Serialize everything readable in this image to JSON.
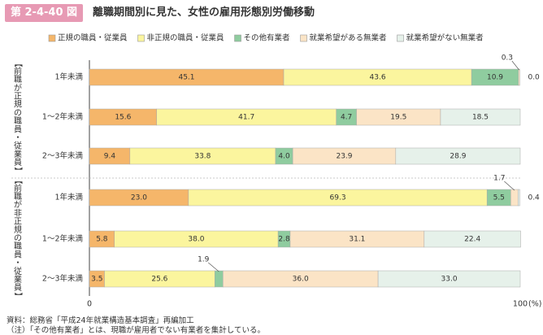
{
  "header": {
    "figure_no": "第 2-4-40 図",
    "title": "離職期間別に見た、女性の雇用形態別労働移動"
  },
  "chart_data": {
    "type": "bar",
    "orientation": "horizontal",
    "stacked": true,
    "title": "離職期間別に見た、女性の雇用形態別労働移動",
    "xlabel": "(%)",
    "xlim": [
      0,
      100
    ],
    "x_ticks": [
      "0",
      "100"
    ],
    "legend_position": "top",
    "groups": [
      {
        "label": "【前職が正規の職員・従業員】",
        "categories": [
          "1年未満",
          "1～2年未満",
          "2～3年未満"
        ]
      },
      {
        "label": "【前職が非正規の職員・従業員】",
        "categories": [
          "1年未満",
          "1～2年未満",
          "2～3年未満"
        ]
      }
    ],
    "categories": [
      "1年未満",
      "1～2年未満",
      "2～3年未満",
      "1年未満",
      "1～2年未満",
      "2～3年未満"
    ],
    "series": [
      {
        "name": "正規の職員・従業員",
        "color": "#f5b66a",
        "values": [
          45.1,
          15.6,
          9.4,
          23.0,
          5.8,
          3.5
        ]
      },
      {
        "name": "非正規の職員・従業員",
        "color": "#fbf59e",
        "values": [
          43.6,
          41.7,
          33.8,
          69.3,
          38.0,
          25.6
        ]
      },
      {
        "name": "その他有業者",
        "color": "#8fcc9f",
        "values": [
          10.9,
          4.7,
          4.0,
          5.5,
          2.8,
          1.9
        ]
      },
      {
        "name": "就業希望がある無業者",
        "color": "#fbe4c6",
        "values": [
          0.3,
          19.5,
          23.9,
          1.7,
          31.1,
          36.0
        ]
      },
      {
        "name": "就業希望がない無業者",
        "color": "#e6f1ea",
        "values": [
          0.0,
          18.5,
          28.9,
          0.4,
          22.4,
          33.0
        ]
      }
    ],
    "bar_labels": [
      [
        "45.1",
        "43.6",
        "10.9",
        "0.3",
        "0.0"
      ],
      [
        "15.6",
        "41.7",
        "4.7",
        "19.5",
        "18.5"
      ],
      [
        "9.4",
        "33.8",
        "4.0",
        "23.9",
        "28.9"
      ],
      [
        "23.0",
        "69.3",
        "5.5",
        "1.7",
        "0.4"
      ],
      [
        "5.8",
        "38.0",
        "2.8",
        "31.1",
        "22.4"
      ],
      [
        "3.5",
        "25.6",
        "1.9",
        "36.0",
        "33.0"
      ]
    ]
  },
  "notes": {
    "source": "資料：総務省「平成24年就業構造基本調査」再編加工",
    "remark": "（注）「その他有業者」とは、現職が雇用者でない有業者を集計している。"
  }
}
